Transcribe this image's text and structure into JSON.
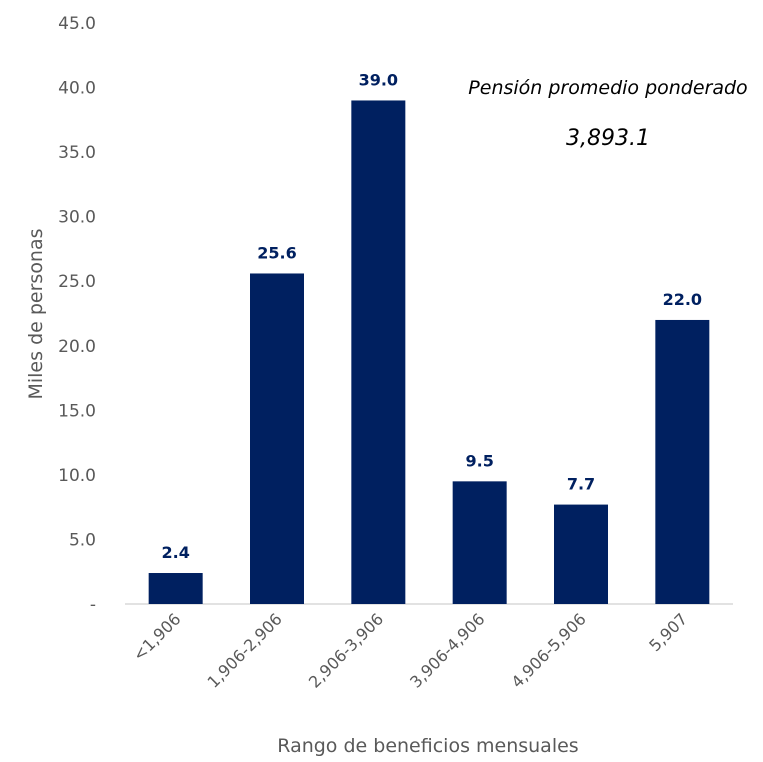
{
  "chart_data": {
    "type": "bar",
    "categories": [
      "<1,906",
      "1,906-2,906",
      "2,906-3,906",
      "3,906-4,906",
      "4,906-5,906",
      "5,907"
    ],
    "values": [
      2.4,
      25.6,
      39.0,
      9.5,
      7.7,
      22.0
    ],
    "data_labels": [
      "2.4",
      "25.6",
      "39.0",
      "9.5",
      "7.7",
      "22.0"
    ],
    "xlabel": "Rango de beneficios mensuales",
    "ylabel": "Miles de personas",
    "ylim": [
      0,
      45
    ],
    "yticks": [
      0,
      5,
      10,
      15,
      20,
      25,
      30,
      35,
      40,
      45
    ],
    "ytick_labels": [
      "-",
      "5.0",
      "10.0",
      "15.0",
      "20.0",
      "25.0",
      "30.0",
      "35.0",
      "40.0",
      "45.0"
    ],
    "grid": false,
    "bar_color": "#002060",
    "label_color": "#002060",
    "annotation": {
      "title": "Pensión promedio ponderado",
      "value": "3,893.1"
    }
  }
}
